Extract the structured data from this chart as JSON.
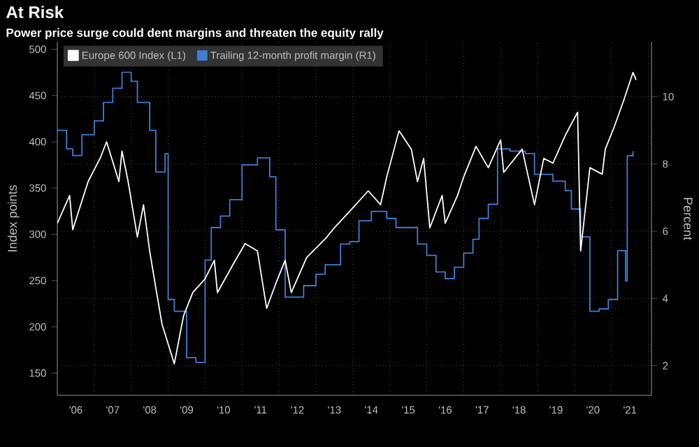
{
  "chart_data": {
    "type": "line",
    "title": "At Risk",
    "subtitle": "Power price surge could dent margins and threaten the equity rally",
    "ylabel": "Index points",
    "y2label": "Percent",
    "legend": "top left",
    "grid": true,
    "xlim": [
      "2006-01",
      "2022-02"
    ],
    "xticks": [
      {
        "value": "2006-07",
        "label": "'06"
      },
      {
        "value": "2007-07",
        "label": "'07"
      },
      {
        "value": "2008-07",
        "label": "'08"
      },
      {
        "value": "2009-07",
        "label": "'09"
      },
      {
        "value": "2010-07",
        "label": "'10"
      },
      {
        "value": "2011-07",
        "label": "'11"
      },
      {
        "value": "2012-07",
        "label": "'12"
      },
      {
        "value": "2013-07",
        "label": "'13"
      },
      {
        "value": "2014-07",
        "label": "'14"
      },
      {
        "value": "2015-07",
        "label": "'15"
      },
      {
        "value": "2016-07",
        "label": "'16"
      },
      {
        "value": "2017-07",
        "label": "'17"
      },
      {
        "value": "2018-07",
        "label": "'18"
      },
      {
        "value": "2019-07",
        "label": "'19"
      },
      {
        "value": "2020-07",
        "label": "'20"
      },
      {
        "value": "2021-07",
        "label": "'21"
      },
      {
        "value": "2007-01",
        "label": null
      },
      {
        "value": "2008-01",
        "label": null
      },
      {
        "value": "2009-01",
        "label": null
      },
      {
        "value": "2010-01",
        "label": null
      },
      {
        "value": "2011-01",
        "label": null
      },
      {
        "value": "2012-01",
        "label": null
      },
      {
        "value": "2013-01",
        "label": null
      },
      {
        "value": "2014-01",
        "label": null
      },
      {
        "value": "2015-01",
        "label": null
      },
      {
        "value": "2016-01",
        "label": null
      },
      {
        "value": "2017-01",
        "label": null
      },
      {
        "value": "2018-01",
        "label": null
      },
      {
        "value": "2019-01",
        "label": null
      },
      {
        "value": "2020-01",
        "label": null
      },
      {
        "value": "2021-01",
        "label": null
      },
      {
        "value": "2022-01",
        "label": null
      }
    ],
    "ylim": [
      126,
      508
    ],
    "yticks": [
      150,
      200,
      250,
      300,
      350,
      400,
      450,
      500
    ],
    "y2lim": [
      1.12,
      11.63
    ],
    "y2ticks": [
      2,
      4,
      6,
      8,
      10
    ],
    "series": [
      {
        "name": "Europe 600 Index (L1)",
        "color": "#ffffff",
        "x": [
          "2006-01",
          "2006-05",
          "2006-06",
          "2006-11",
          "2007-03",
          "2007-05",
          "2007-09",
          "2007-10",
          "2007-12",
          "2008-03",
          "2008-05",
          "2008-07",
          "2008-09",
          "2008-11",
          "2009-03",
          "2009-06",
          "2009-09",
          "2010-01",
          "2010-04",
          "2010-05",
          "2010-10",
          "2011-02",
          "2011-06",
          "2011-09",
          "2011-12",
          "2012-03",
          "2012-05",
          "2012-10",
          "2013-04",
          "2013-07",
          "2013-12",
          "2014-06",
          "2014-10",
          "2014-12",
          "2015-04",
          "2015-08",
          "2015-10",
          "2015-12",
          "2016-02",
          "2016-06",
          "2016-07",
          "2016-11",
          "2017-01",
          "2017-05",
          "2017-09",
          "2018-01",
          "2018-02",
          "2018-08",
          "2018-12",
          "2019-03",
          "2019-06",
          "2019-10",
          "2020-02",
          "2020-03",
          "2020-06",
          "2020-10",
          "2020-11",
          "2021-02",
          "2021-05",
          "2021-08",
          "2021-09"
        ],
        "values": [
          312,
          342,
          305,
          357,
          383,
          400,
          357,
          390,
          357,
          297,
          332,
          282,
          242,
          203,
          160,
          212,
          237,
          252,
          272,
          237,
          267,
          290,
          282,
          220,
          247,
          272,
          237,
          275,
          295,
          307,
          325,
          347,
          332,
          362,
          412,
          392,
          357,
          382,
          307,
          342,
          312,
          342,
          362,
          395,
          372,
          402,
          367,
          392,
          332,
          382,
          377,
          407,
          432,
          282,
          372,
          365,
          392,
          417,
          445,
          475,
          467
        ]
      },
      {
        "name": "Trailing 12-month profit margin (R1)",
        "color": "#3c7fd6",
        "type": "step",
        "axis": "y2",
        "x": [
          "2006-01",
          "2006-04",
          "2006-06",
          "2006-09",
          "2007-01",
          "2007-04",
          "2007-07",
          "2007-10",
          "2008-01",
          "2008-03",
          "2008-07",
          "2008-09",
          "2008-12",
          "2009-01",
          "2009-03",
          "2009-07",
          "2009-10",
          "2010-01",
          "2010-03",
          "2010-06",
          "2010-09",
          "2011-01",
          "2011-06",
          "2011-10",
          "2011-12",
          "2012-03",
          "2012-09",
          "2013-01",
          "2013-04",
          "2013-09",
          "2013-12",
          "2014-03",
          "2014-07",
          "2014-12",
          "2015-03",
          "2015-10",
          "2016-01",
          "2016-04",
          "2016-07",
          "2016-10",
          "2017-01",
          "2017-04",
          "2017-06",
          "2017-09",
          "2017-12",
          "2018-04",
          "2018-09",
          "2018-12",
          "2019-06",
          "2019-10",
          "2019-12",
          "2020-03",
          "2020-06",
          "2020-09",
          "2020-12",
          "2021-03",
          "2021-05-20",
          "2021-06-05",
          "2021-08"
        ],
        "values": [
          9.0,
          8.45,
          8.25,
          8.87,
          9.28,
          9.83,
          10.25,
          10.73,
          10.46,
          9.83,
          9.0,
          7.76,
          8.31,
          3.97,
          3.62,
          2.24,
          2.1,
          5.14,
          6.11,
          6.45,
          6.94,
          7.97,
          8.18,
          7.62,
          6.04,
          4.04,
          4.38,
          4.72,
          5.0,
          5.62,
          5.69,
          6.31,
          6.59,
          6.38,
          6.11,
          5.62,
          5.28,
          4.79,
          4.59,
          4.93,
          5.35,
          5.76,
          6.38,
          6.8,
          8.45,
          8.38,
          8.31,
          7.69,
          7.49,
          7.21,
          6.66,
          5.83,
          3.62,
          3.69,
          3.97,
          5.42,
          4.52,
          8.24,
          8.38
        ]
      }
    ]
  }
}
